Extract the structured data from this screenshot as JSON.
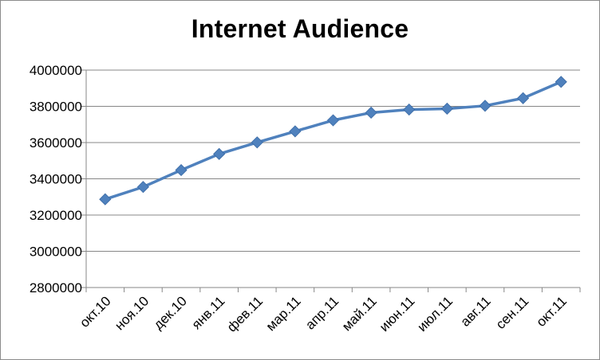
{
  "chart_data": {
    "type": "line",
    "title": "Internet Audience",
    "xlabel": "",
    "ylabel": "",
    "categories": [
      "окт.10",
      "ноя.10",
      "дек.10",
      "янв.11",
      "фев.11",
      "мар.11",
      "апр.11",
      "май.11",
      "июн.11",
      "июл.11",
      "авг.11",
      "сен.11",
      "окт.11"
    ],
    "series": [
      {
        "values": [
          3287000,
          3355000,
          3448000,
          3537000,
          3601000,
          3662000,
          3723000,
          3765000,
          3782000,
          3787000,
          3803000,
          3845000,
          3935000
        ]
      }
    ],
    "ylim": [
      2800000,
      4000000
    ],
    "yticks": [
      "2800000",
      "3000000",
      "3200000",
      "3400000",
      "3600000",
      "3800000",
      "4000000"
    ],
    "grid": true,
    "legend": "none",
    "marker": "diamond",
    "colors": {
      "series": "#4f81bd",
      "grid": "#878787",
      "axis": "#878787"
    }
  }
}
